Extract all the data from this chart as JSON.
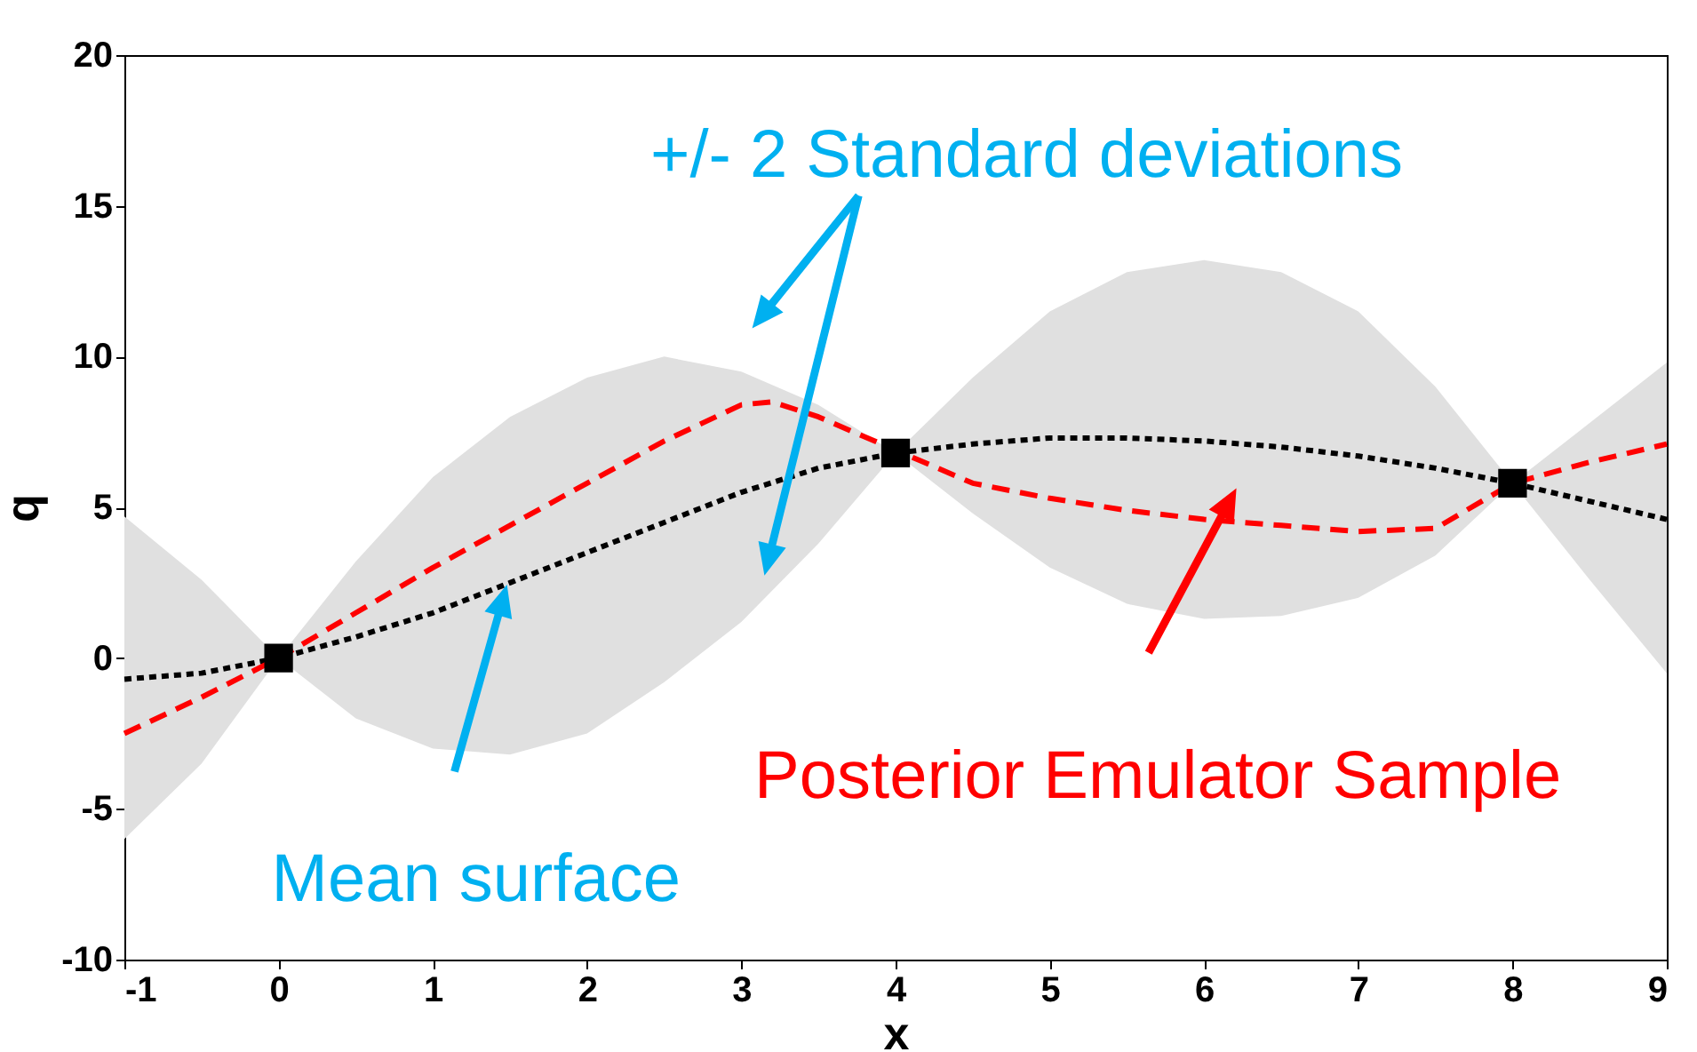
{
  "chart_data": {
    "type": "line",
    "xlabel": "x",
    "ylabel": "q",
    "xlim": [
      -1,
      9
    ],
    "ylim": [
      -10,
      20
    ],
    "xticks": [
      -1,
      0,
      1,
      2,
      3,
      4,
      5,
      6,
      7,
      8,
      9
    ],
    "yticks": [
      -10,
      -5,
      0,
      5,
      10,
      15,
      20
    ],
    "grid": false,
    "annotations": [
      "+/- 2 Standard deviations",
      "Mean surface",
      "Posterior Emulator Sample"
    ],
    "series": [
      {
        "color": "#000000",
        "line_style": "dotted",
        "marker": "none",
        "x": [
          -1,
          -0.5,
          0,
          0.5,
          1,
          1.5,
          2,
          2.5,
          3,
          3.5,
          4,
          4.5,
          5,
          5.5,
          6,
          6.5,
          7,
          7.5,
          8,
          8.5,
          9
        ],
        "values": [
          -0.7,
          -0.5,
          0,
          0.7,
          1.5,
          2.5,
          3.5,
          4.5,
          5.5,
          6.3,
          6.8,
          7.1,
          7.3,
          7.3,
          7.2,
          7,
          6.7,
          6.3,
          5.8,
          5.2,
          4.6
        ],
        "lower": [
          -6,
          -3.5,
          0,
          -2,
          -3,
          -3.2,
          -2.5,
          -0.8,
          1.2,
          3.8,
          6.8,
          4.8,
          3,
          1.8,
          1.3,
          1.4,
          2,
          3.4,
          5.8,
          2.6,
          -0.5
        ],
        "upper": [
          4.7,
          2.6,
          0,
          3.2,
          6,
          8,
          9.3,
          10,
          9.5,
          8.4,
          6.8,
          9.3,
          11.5,
          12.8,
          13.2,
          12.8,
          11.5,
          9,
          5.8,
          7.8,
          9.8
        ]
      },
      {
        "color": "#ff0000",
        "line_style": "dashed",
        "marker": "none",
        "x": [
          -1,
          -0.5,
          0,
          0.5,
          1,
          1.5,
          2,
          2.5,
          3,
          3.2,
          3.5,
          4.5,
          5,
          5.5,
          6,
          6.5,
          7,
          7.5,
          8,
          8.5,
          9
        ],
        "values": [
          -2.5,
          -1.3,
          0,
          1.5,
          3,
          4.4,
          5.8,
          7.2,
          8.4,
          8.5,
          8,
          5.8,
          5.3,
          4.9,
          4.6,
          4.4,
          4.2,
          4.3,
          5.8,
          6.5,
          7.1
        ]
      },
      {
        "type": "scatter",
        "color": "#000000",
        "marker": "square",
        "x": [
          0,
          4,
          8
        ],
        "values": [
          0,
          6.8,
          5.8
        ]
      }
    ]
  }
}
